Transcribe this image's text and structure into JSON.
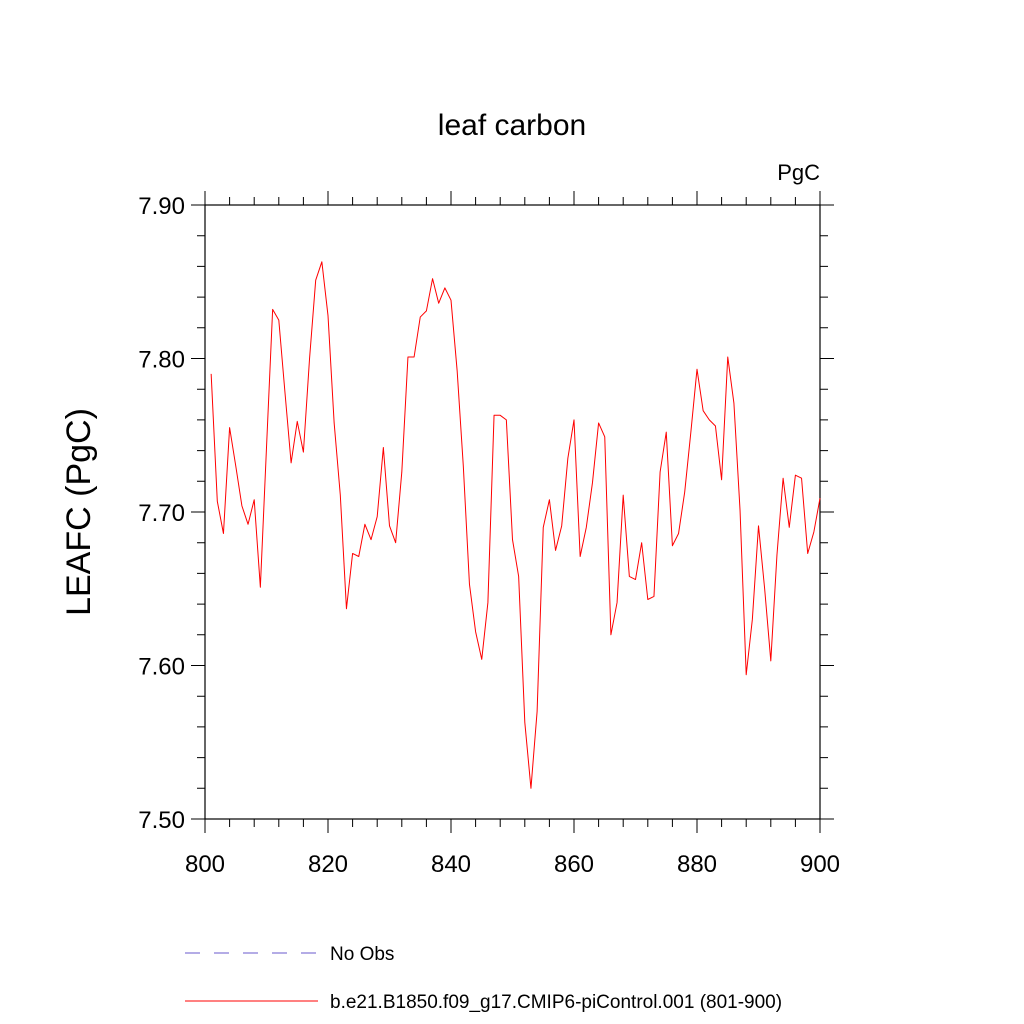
{
  "chart_data": {
    "type": "line",
    "title": "leaf carbon",
    "units_label": "PgC",
    "xlabel": "",
    "ylabel": "LEAFC  (PgC)",
    "xlim": [
      800,
      900
    ],
    "ylim": [
      7.5,
      7.9
    ],
    "x_ticks": [
      800,
      820,
      840,
      860,
      880,
      900
    ],
    "x_tick_labels": [
      "800",
      "820",
      "840",
      "860",
      "880",
      "900"
    ],
    "y_ticks": [
      7.5,
      7.6,
      7.7,
      7.8,
      7.9
    ],
    "y_tick_labels": [
      "7.50",
      "7.60",
      "7.70",
      "7.80",
      "7.90"
    ],
    "grid": false,
    "legend_position": "bottom",
    "series": [
      {
        "name": "b.e21.B1850.f09_g17.CMIP6-piControl.001 (801-900)",
        "color": "#ff0000",
        "style": "solid",
        "x": [
          801,
          802,
          803,
          804,
          805,
          806,
          807,
          808,
          809,
          810,
          811,
          812,
          813,
          814,
          815,
          816,
          817,
          818,
          819,
          820,
          821,
          822,
          823,
          824,
          825,
          826,
          827,
          828,
          829,
          830,
          831,
          832,
          833,
          834,
          835,
          836,
          837,
          838,
          839,
          840,
          841,
          842,
          843,
          844,
          845,
          846,
          847,
          848,
          849,
          850,
          851,
          852,
          853,
          854,
          855,
          856,
          857,
          858,
          859,
          860,
          861,
          862,
          863,
          864,
          865,
          866,
          867,
          868,
          869,
          870,
          871,
          872,
          873,
          874,
          875,
          876,
          877,
          878,
          879,
          880,
          881,
          882,
          883,
          884,
          885,
          886,
          887,
          888,
          889,
          890,
          891,
          892,
          893,
          894,
          895,
          896,
          897,
          898,
          899,
          900
        ],
        "values": [
          7.79,
          7.707,
          7.686,
          7.755,
          7.73,
          7.704,
          7.692,
          7.708,
          7.651,
          7.742,
          7.832,
          7.825,
          7.778,
          7.732,
          7.759,
          7.739,
          7.8,
          7.851,
          7.863,
          7.828,
          7.758,
          7.711,
          7.637,
          7.673,
          7.671,
          7.692,
          7.682,
          7.697,
          7.742,
          7.691,
          7.68,
          7.726,
          7.801,
          7.801,
          7.827,
          7.831,
          7.852,
          7.836,
          7.846,
          7.838,
          7.792,
          7.73,
          7.653,
          7.622,
          7.604,
          7.641,
          7.763,
          7.763,
          7.76,
          7.682,
          7.658,
          7.563,
          7.52,
          7.57,
          7.69,
          7.708,
          7.675,
          7.691,
          7.735,
          7.76,
          7.671,
          7.69,
          7.719,
          7.758,
          7.749,
          7.62,
          7.641,
          7.711,
          7.658,
          7.656,
          7.68,
          7.643,
          7.645,
          7.726,
          7.752,
          7.678,
          7.686,
          7.713,
          7.752,
          7.793,
          7.766,
          7.76,
          7.756,
          7.721,
          7.801,
          7.771,
          7.701,
          7.594,
          7.63,
          7.691,
          7.65,
          7.603,
          7.672,
          7.722,
          7.69,
          7.724,
          7.722,
          7.673,
          7.687,
          7.709
        ]
      },
      {
        "name": "No Obs",
        "color": "#6a5acd",
        "style": "dashed",
        "x": [],
        "values": []
      }
    ]
  }
}
